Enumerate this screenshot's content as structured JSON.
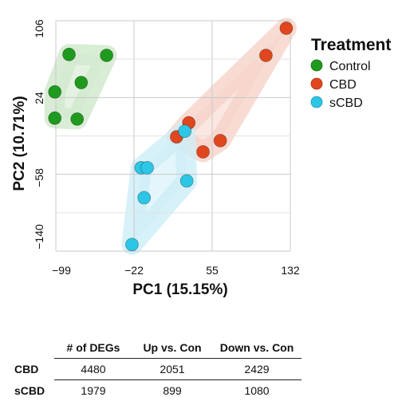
{
  "chart_data": {
    "type": "scatter",
    "xlabel": "PC1 (15.15%)",
    "ylabel": "PC2 (10.71%)",
    "xlim": [
      -99,
      132
    ],
    "ylim": [
      -140,
      106
    ],
    "xticks": [
      "−99",
      "−22",
      "55",
      "132"
    ],
    "yticks": [
      "106",
      "24",
      "−58",
      "−140"
    ],
    "grid": true,
    "legend": {
      "title": "Treatment",
      "position": "right"
    },
    "series": [
      {
        "name": "Control",
        "color": "#1e9a1e",
        "hull_color": "#cfe8cc",
        "x": [
          -86,
          -49,
          -74,
          -100,
          -100,
          -78
        ],
        "y": [
          70,
          69,
          40,
          30,
          2,
          1
        ]
      },
      {
        "name": "CBD",
        "color": "#e0471e",
        "hull_color": "#f6d3c8",
        "x": [
          128,
          108,
          32,
          20,
          63,
          46
        ],
        "y": [
          98,
          69,
          -3,
          -18,
          -22,
          -34
        ],
        "note": ""
      },
      {
        "name": "sCBD",
        "color": "#2cc6e6",
        "hull_color": "#cdeef7",
        "x": [
          28,
          -15,
          -9,
          30,
          -12,
          -24
        ],
        "y": [
          -12,
          -51,
          -51,
          -65,
          -83,
          -133
        ]
      }
    ]
  },
  "table": {
    "headers": [
      "# of DEGs",
      "Up vs. Con",
      "Down vs. Con"
    ],
    "rows": [
      {
        "label": "CBD",
        "values": [
          "4480",
          "2051",
          "2429"
        ]
      },
      {
        "label": "sCBD",
        "values": [
          "1979",
          "899",
          "1080"
        ]
      }
    ]
  }
}
